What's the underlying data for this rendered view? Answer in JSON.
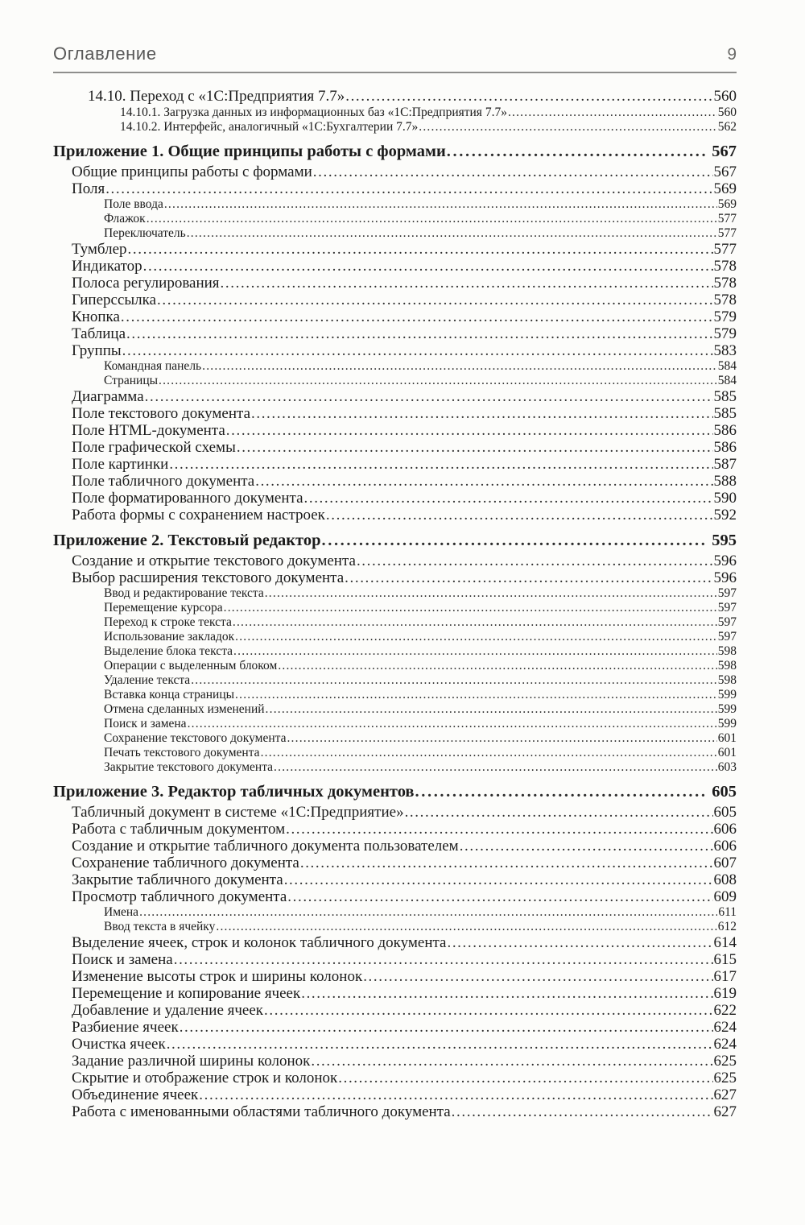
{
  "header": {
    "title": "Оглавление",
    "page_number": "9"
  },
  "toc": {
    "entries": [
      {
        "level": "n1",
        "label": "14.10. Переход с «1С:Предприятия 7.7»",
        "page": "560"
      },
      {
        "level": "n2",
        "label": "14.10.1. Загрузка данных из информационных баз «1С:Предприятия 7.7»",
        "page": "560"
      },
      {
        "level": "n2",
        "label": "14.10.2. Интерфейс, аналогичный «1С:Бухгалтерии 7.7»",
        "page": "562"
      },
      {
        "level": "h1",
        "label": "Приложение 1. Общие принципы работы с формами",
        "page": "567"
      },
      {
        "level": "l1",
        "label": "Общие принципы работы с формами",
        "page": "567"
      },
      {
        "level": "l1",
        "label": "Поля",
        "page": "569"
      },
      {
        "level": "l2",
        "label": "Поле ввода",
        "page": "569"
      },
      {
        "level": "l2",
        "label": "Флажок",
        "page": "577"
      },
      {
        "level": "l2",
        "label": "Переключатель",
        "page": "577"
      },
      {
        "level": "l1",
        "label": "Тумблер",
        "page": "577"
      },
      {
        "level": "l1",
        "label": "Индикатор",
        "page": "578"
      },
      {
        "level": "l1",
        "label": "Полоса регулирования",
        "page": "578"
      },
      {
        "level": "l1",
        "label": "Гиперссылка",
        "page": "578"
      },
      {
        "level": "l1",
        "label": "Кнопка",
        "page": "579"
      },
      {
        "level": "l1",
        "label": "Таблица",
        "page": "579"
      },
      {
        "level": "l1",
        "label": "Группы",
        "page": "583"
      },
      {
        "level": "l2",
        "label": "Командная панель",
        "page": "584"
      },
      {
        "level": "l2",
        "label": "Страницы",
        "page": "584"
      },
      {
        "level": "l1",
        "label": "Диаграмма",
        "page": "585"
      },
      {
        "level": "l1",
        "label": "Поле текстового документа",
        "page": "585"
      },
      {
        "level": "l1",
        "label": "Поле HTML-документа",
        "page": "586"
      },
      {
        "level": "l1",
        "label": "Поле графической схемы",
        "page": "586"
      },
      {
        "level": "l1",
        "label": "Поле картинки",
        "page": "587"
      },
      {
        "level": "l1",
        "label": "Поле табличного документа",
        "page": "588"
      },
      {
        "level": "l1",
        "label": "Поле форматированного документа",
        "page": "590"
      },
      {
        "level": "l1",
        "label": "Работа формы с сохранением настроек",
        "page": "592"
      },
      {
        "level": "h1",
        "label": "Приложение 2. Текстовый редактор",
        "page": "595"
      },
      {
        "level": "l1",
        "label": "Создание и открытие текстового документа",
        "page": "596"
      },
      {
        "level": "l1",
        "label": "Выбор расширения текстового документа",
        "page": "596"
      },
      {
        "level": "l2",
        "label": "Ввод и редактирование текста",
        "page": "597"
      },
      {
        "level": "l2",
        "label": "Перемещение курсора",
        "page": "597"
      },
      {
        "level": "l2",
        "label": "Переход к строке текста",
        "page": "597"
      },
      {
        "level": "l2",
        "label": "Использование закладок",
        "page": "597"
      },
      {
        "level": "l2",
        "label": "Выделение блока текста",
        "page": "598"
      },
      {
        "level": "l2",
        "label": "Операции с выделенным блоком",
        "page": "598"
      },
      {
        "level": "l2",
        "label": "Удаление текста",
        "page": "598"
      },
      {
        "level": "l2",
        "label": "Вставка конца страницы",
        "page": "599"
      },
      {
        "level": "l2",
        "label": "Отмена сделанных изменений",
        "page": "599"
      },
      {
        "level": "l2",
        "label": "Поиск и замена",
        "page": "599"
      },
      {
        "level": "l2",
        "label": "Сохранение текстового документа",
        "page": "601"
      },
      {
        "level": "l2",
        "label": "Печать текстового документа",
        "page": "601"
      },
      {
        "level": "l2",
        "label": "Закрытие текстового документа",
        "page": "603"
      },
      {
        "level": "h1",
        "label": "Приложение 3. Редактор табличных документов",
        "page": "605"
      },
      {
        "level": "l1",
        "label": "Табличный документ в системе «1С:Предприятие»",
        "page": "605"
      },
      {
        "level": "l1",
        "label": "Работа с табличным документом",
        "page": "606"
      },
      {
        "level": "l1",
        "label": "Создание и открытие табличного документа пользователем",
        "page": "606"
      },
      {
        "level": "l1",
        "label": "Сохранение табличного документа",
        "page": "607"
      },
      {
        "level": "l1",
        "label": "Закрытие табличного документа",
        "page": "608"
      },
      {
        "level": "l1",
        "label": "Просмотр табличного документа",
        "page": "609"
      },
      {
        "level": "l2",
        "label": "Имена",
        "page": "611"
      },
      {
        "level": "l2",
        "label": "Ввод текста в ячейку",
        "page": "612"
      },
      {
        "level": "l1",
        "label": "Выделение ячеек, строк и колонок табличного документа",
        "page": "614"
      },
      {
        "level": "l1",
        "label": "Поиск и замена",
        "page": "615"
      },
      {
        "level": "l1",
        "label": "Изменение высоты строк и ширины колонок",
        "page": "617"
      },
      {
        "level": "l1",
        "label": "Перемещение и копирование ячеек",
        "page": "619"
      },
      {
        "level": "l1",
        "label": "Добавление и удаление ячеек",
        "page": "622"
      },
      {
        "level": "l1",
        "label": "Разбиение ячеек",
        "page": "624"
      },
      {
        "level": "l1",
        "label": "Очистка ячеек",
        "page": "624"
      },
      {
        "level": "l1",
        "label": "Задание различной ширины колонок",
        "page": "625"
      },
      {
        "level": "l1",
        "label": "Скрытие и отображение строк и колонок",
        "page": "625"
      },
      {
        "level": "l1",
        "label": "Объединение ячеек",
        "page": "627"
      },
      {
        "level": "l1",
        "label": "Работа с именованными областями табличного документа",
        "page": "627"
      }
    ]
  }
}
